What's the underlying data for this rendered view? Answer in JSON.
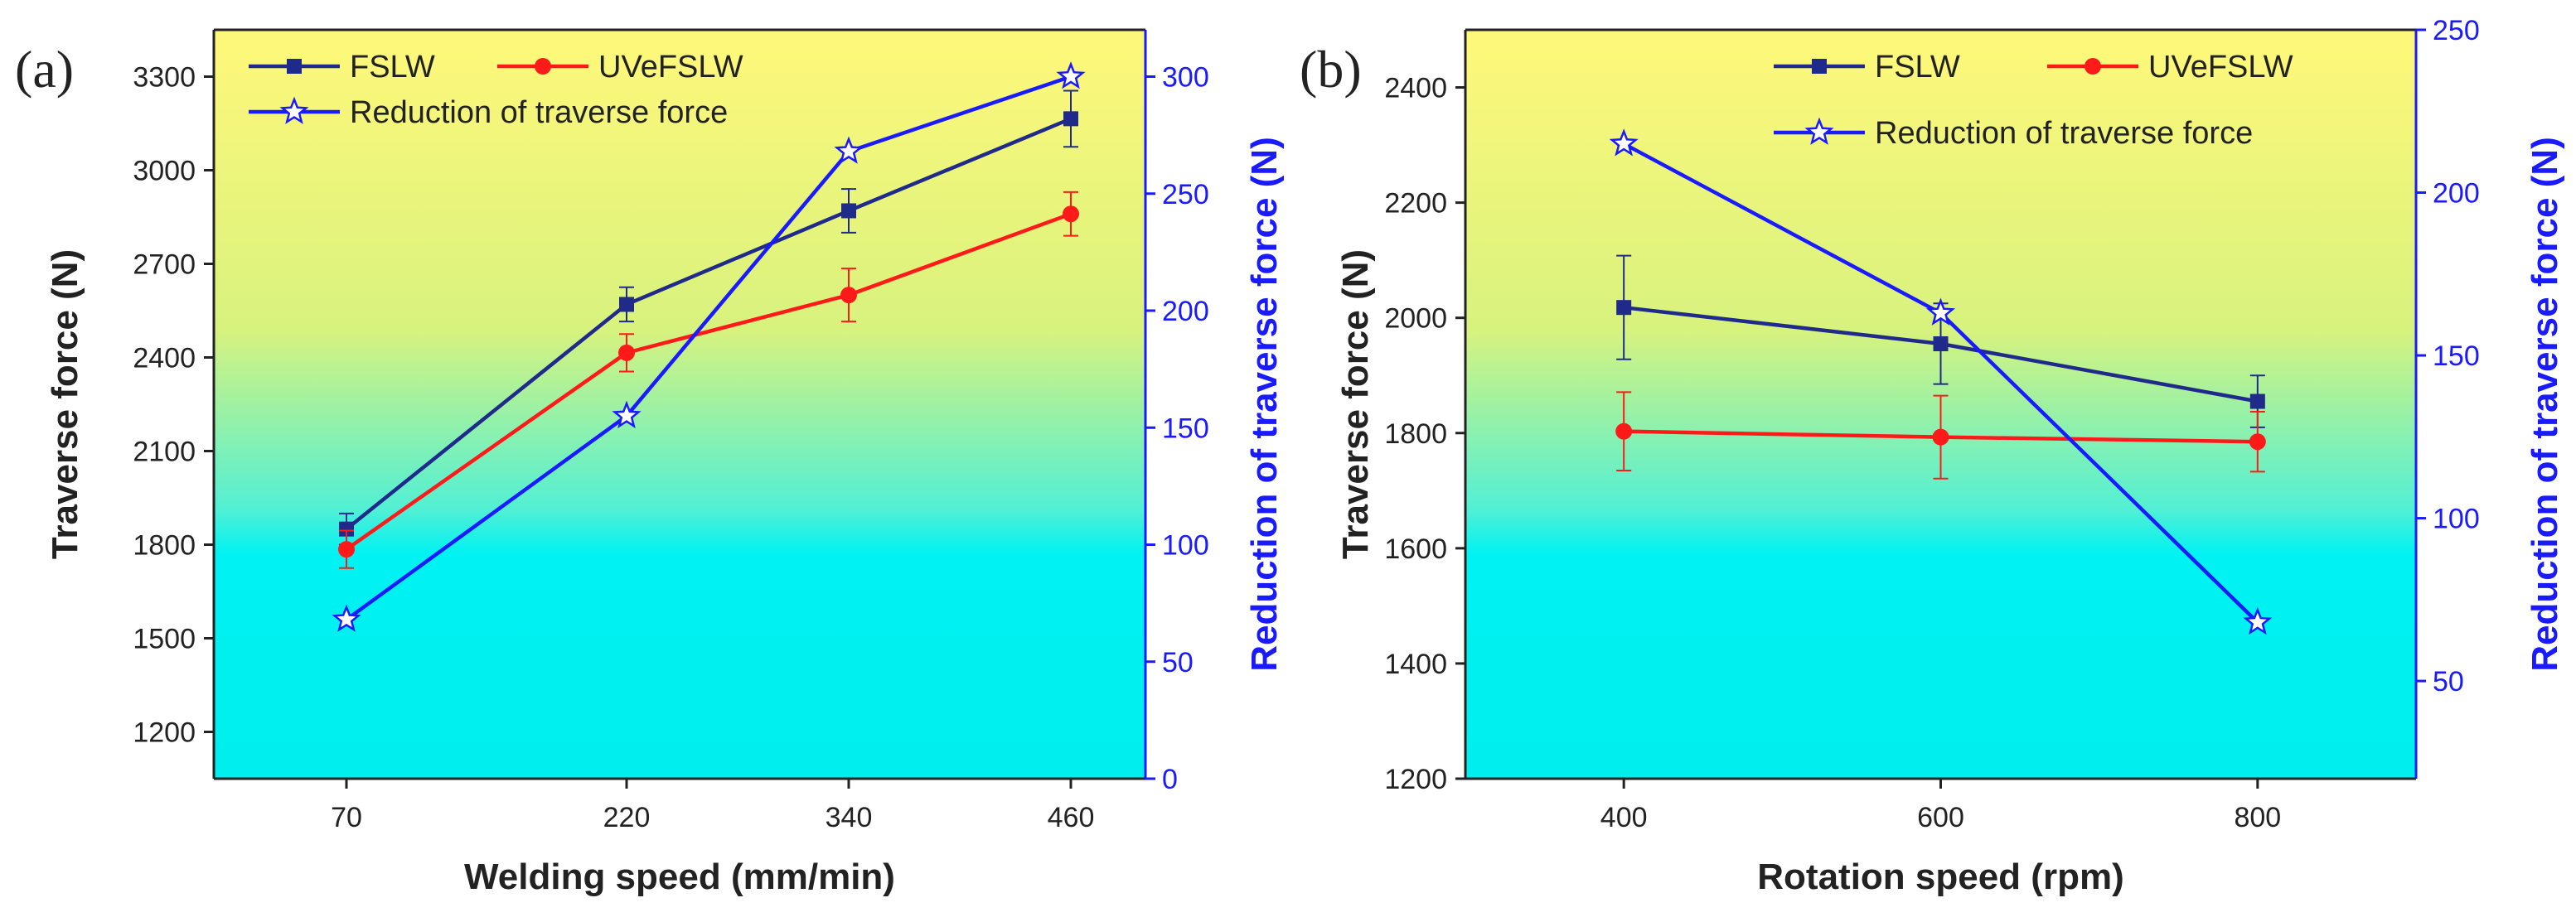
{
  "chart_data": [
    {
      "type": "line",
      "panel_label": "(a)",
      "xlabel": "Welding speed (mm/min)",
      "ylabel": "Traverse force (N)",
      "ylabel_right": "Reduction of traverse force (N)",
      "categories": [
        "70",
        "220",
        "340",
        "460"
      ],
      "ylim": [
        1050,
        3450
      ],
      "yticks": [
        "1200",
        "1500",
        "1800",
        "2100",
        "2400",
        "2700",
        "3000",
        "3300"
      ],
      "ylim_right": [
        0,
        320
      ],
      "yticks_right": [
        "0",
        "50",
        "100",
        "150",
        "200",
        "250",
        "300"
      ],
      "legend": [
        "FSLW",
        "UVeFSLW",
        "Reduction of traverse force"
      ],
      "series": [
        {
          "name": "FSLW",
          "axis": "left",
          "color": "#1f2a8a",
          "marker": "square",
          "values": [
            1850,
            2570,
            2870,
            3165
          ],
          "errors": [
            50,
            55,
            70,
            90
          ]
        },
        {
          "name": "UVeFSLW",
          "axis": "left",
          "color": "#ff1a1a",
          "marker": "circle",
          "values": [
            1785,
            2415,
            2600,
            2860
          ],
          "errors": [
            60,
            60,
            85,
            70
          ]
        },
        {
          "name": "Reduction of traverse force",
          "axis": "right",
          "color": "#1a1aff",
          "marker": "star",
          "values": [
            68,
            155,
            268,
            300
          ],
          "errors": [
            0,
            0,
            0,
            0
          ]
        }
      ]
    },
    {
      "type": "line",
      "panel_label": "(b)",
      "xlabel": "Rotation speed (rpm)",
      "ylabel": "Traverse force (N)",
      "ylabel_right": "Reduction of traverse force (N)",
      "categories": [
        "400",
        "600",
        "800"
      ],
      "xlim": [
        300,
        900
      ],
      "x": [
        400,
        600,
        800
      ],
      "ylim": [
        1200,
        2500
      ],
      "yticks": [
        "1200",
        "1400",
        "1600",
        "1800",
        "2000",
        "2200",
        "2400"
      ],
      "ylim_right": [
        20,
        250
      ],
      "yticks_right": [
        "50",
        "100",
        "150",
        "200",
        "250"
      ],
      "legend": [
        "FSLW",
        "UVeFSLW",
        "Reduction of traverse force"
      ],
      "series": [
        {
          "name": "FSLW",
          "axis": "left",
          "color": "#1f2a8a",
          "marker": "square",
          "values": [
            2018,
            1955,
            1855
          ],
          "errors": [
            90,
            70,
            45
          ]
        },
        {
          "name": "UVeFSLW",
          "axis": "left",
          "color": "#ff1a1a",
          "marker": "circle",
          "values": [
            1803,
            1793,
            1785
          ],
          "errors": [
            68,
            72,
            52
          ]
        },
        {
          "name": "Reduction of traverse force",
          "axis": "right",
          "color": "#1a1aff",
          "marker": "star",
          "values": [
            215,
            163,
            68
          ],
          "errors": [
            0,
            0,
            0
          ]
        }
      ]
    }
  ]
}
